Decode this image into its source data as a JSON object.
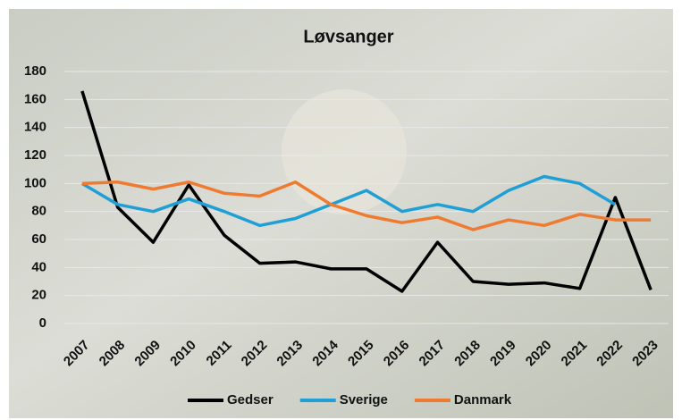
{
  "chart_data": {
    "type": "line",
    "title": "Løvsanger",
    "categories": [
      "2007",
      "2008",
      "2009",
      "2010",
      "2011",
      "2012",
      "2013",
      "2014",
      "2015",
      "2016",
      "2017",
      "2018",
      "2019",
      "2020",
      "2021",
      "2022",
      "2023"
    ],
    "series": [
      {
        "name": "Gedser",
        "color": "#000000",
        "values": [
          166,
          83,
          58,
          99,
          63,
          43,
          44,
          39,
          39,
          23,
          58,
          30,
          28,
          29,
          25,
          90,
          24
        ]
      },
      {
        "name": "Sverige",
        "color": "#1f9fd6",
        "values": [
          100,
          85,
          80,
          89,
          80,
          70,
          75,
          85,
          95,
          80,
          85,
          80,
          95,
          105,
          100,
          85,
          null
        ]
      },
      {
        "name": "Danmark",
        "color": "#ee7b30",
        "values": [
          100,
          101,
          96,
          101,
          93,
          91,
          101,
          85,
          77,
          72,
          76,
          67,
          74,
          70,
          78,
          74,
          74
        ]
      }
    ],
    "ylim": [
      0,
      180
    ],
    "yticks": [
      0,
      20,
      40,
      60,
      80,
      100,
      120,
      140,
      160,
      180
    ],
    "grid": true,
    "legend": "bottom"
  }
}
